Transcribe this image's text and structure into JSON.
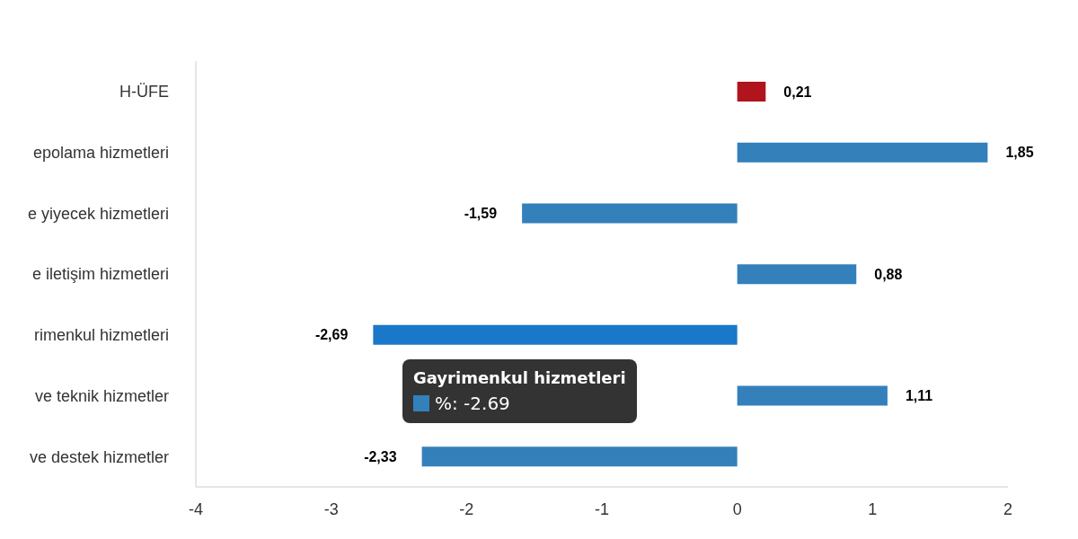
{
  "chart_data": {
    "type": "bar",
    "orientation": "horizontal",
    "categories": [
      "H-ÜFE",
      "epolama hizmetleri",
      "e yiyecek hizmetleri",
      "e iletişim hizmetleri",
      "rimenkul hizmetleri",
      "ve teknik hizmetler",
      "ve destek hizmetler"
    ],
    "values": [
      0.21,
      1.85,
      -1.59,
      0.88,
      -2.69,
      1.11,
      -2.33
    ],
    "colors": [
      "#b0141c",
      "#3380bb",
      "#3380bb",
      "#3380bb",
      "#1a78c8",
      "#3380bb",
      "#3380bb"
    ],
    "value_labels": [
      "0,21",
      "1,85",
      "-1,59",
      "0,88",
      "-2,69",
      "1,11",
      "-2,33"
    ],
    "xlim": [
      -4,
      2
    ],
    "xticks": [
      -4,
      -3,
      -2,
      -1,
      0,
      1,
      2
    ],
    "annotations": [
      "Gayrimenkul hizmetleri",
      "%: -2.69"
    ]
  }
}
